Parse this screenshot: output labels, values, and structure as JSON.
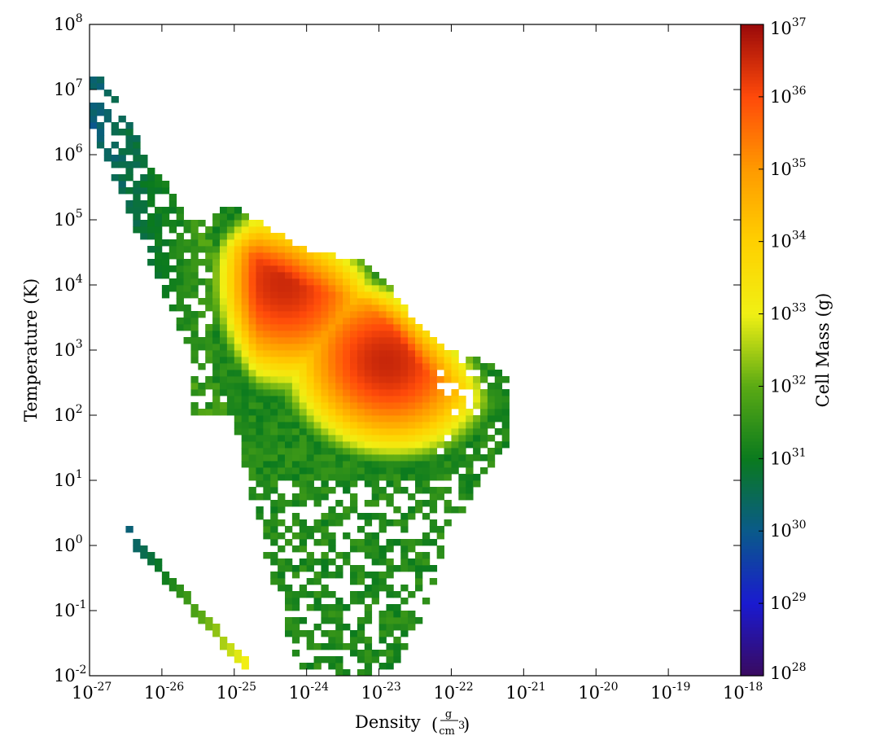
{
  "chart_data": {
    "type": "heatmap",
    "title": "",
    "xlabel": "Density",
    "xlabel_unit_numerator": "g",
    "xlabel_unit_denominator": "cm",
    "xlabel_unit_denominator_exp": "3",
    "ylabel": "Temperature  (K)",
    "x_scale": "log",
    "y_scale": "log",
    "xlim_exp": [
      -27,
      -18
    ],
    "ylim_exp": [
      -2,
      8
    ],
    "x_ticks": [
      {
        "base": "10",
        "exp": "-27",
        "v": -27
      },
      {
        "base": "10",
        "exp": "-26",
        "v": -26
      },
      {
        "base": "10",
        "exp": "-25",
        "v": -25
      },
      {
        "base": "10",
        "exp": "-24",
        "v": -24
      },
      {
        "base": "10",
        "exp": "-23",
        "v": -23
      },
      {
        "base": "10",
        "exp": "-22",
        "v": -22
      },
      {
        "base": "10",
        "exp": "-21",
        "v": -21
      },
      {
        "base": "10",
        "exp": "-20",
        "v": -20
      },
      {
        "base": "10",
        "exp": "-19",
        "v": -19
      },
      {
        "base": "10",
        "exp": "-18",
        "v": -18
      }
    ],
    "y_ticks": [
      {
        "base": "10",
        "exp": "-2",
        "v": -2
      },
      {
        "base": "10",
        "exp": "-1",
        "v": -1
      },
      {
        "base": "10",
        "exp": "0",
        "v": 0
      },
      {
        "base": "10",
        "exp": "1",
        "v": 1
      },
      {
        "base": "10",
        "exp": "2",
        "v": 2
      },
      {
        "base": "10",
        "exp": "3",
        "v": 3
      },
      {
        "base": "10",
        "exp": "4",
        "v": 4
      },
      {
        "base": "10",
        "exp": "5",
        "v": 5
      },
      {
        "base": "10",
        "exp": "6",
        "v": 6
      },
      {
        "base": "10",
        "exp": "7",
        "v": 7
      },
      {
        "base": "10",
        "exp": "8",
        "v": 8
      }
    ],
    "colorbar": {
      "label": "Cell Mass  (g)",
      "scale": "log",
      "range_exp": [
        28,
        37
      ],
      "ticks": [
        {
          "base": "10",
          "exp": "28",
          "v": 28
        },
        {
          "base": "10",
          "exp": "29",
          "v": 29
        },
        {
          "base": "10",
          "exp": "30",
          "v": 30
        },
        {
          "base": "10",
          "exp": "31",
          "v": 31
        },
        {
          "base": "10",
          "exp": "32",
          "v": 32
        },
        {
          "base": "10",
          "exp": "33",
          "v": 33
        },
        {
          "base": "10",
          "exp": "34",
          "v": 34
        },
        {
          "base": "10",
          "exp": "35",
          "v": 35
        },
        {
          "base": "10",
          "exp": "36",
          "v": 36
        },
        {
          "base": "10",
          "exp": "37",
          "v": 37
        }
      ],
      "colormap_stops": [
        "#3a0a5e",
        "#1a1ad0",
        "#0a5a8a",
        "#0a7a1e",
        "#5aaa14",
        "#f0f014",
        "#ffd000",
        "#ff9a00",
        "#ff4a0a",
        "#9a0a0a"
      ]
    },
    "grid": false,
    "bin_size_dex": 0.1,
    "features": [
      {
        "name": "main-body",
        "log_density": [
          -25.2,
          -21.3
        ],
        "log_temperature": [
          -2,
          5.2
        ],
        "peak_log_mass": 36.6
      },
      {
        "name": "density-peak-1",
        "log_density": -24.4,
        "log_temperature": 4.1,
        "log_mass": 37.0
      },
      {
        "name": "density-peak-2",
        "log_density": -22.8,
        "log_temperature": 2.8,
        "log_mass": 36.8
      },
      {
        "name": "hot-diffuse-branch",
        "log_density": [
          -27,
          -25.3
        ],
        "log_temperature": [
          7,
          3
        ],
        "log_mass": [
          29.8,
          31.5
        ]
      },
      {
        "name": "cold-diagonal-branch",
        "log_density": [
          -26.4,
          -24.8
        ],
        "log_temperature": [
          0.1,
          -1.9
        ],
        "log_mass": [
          30.2,
          33.2
        ]
      }
    ]
  }
}
